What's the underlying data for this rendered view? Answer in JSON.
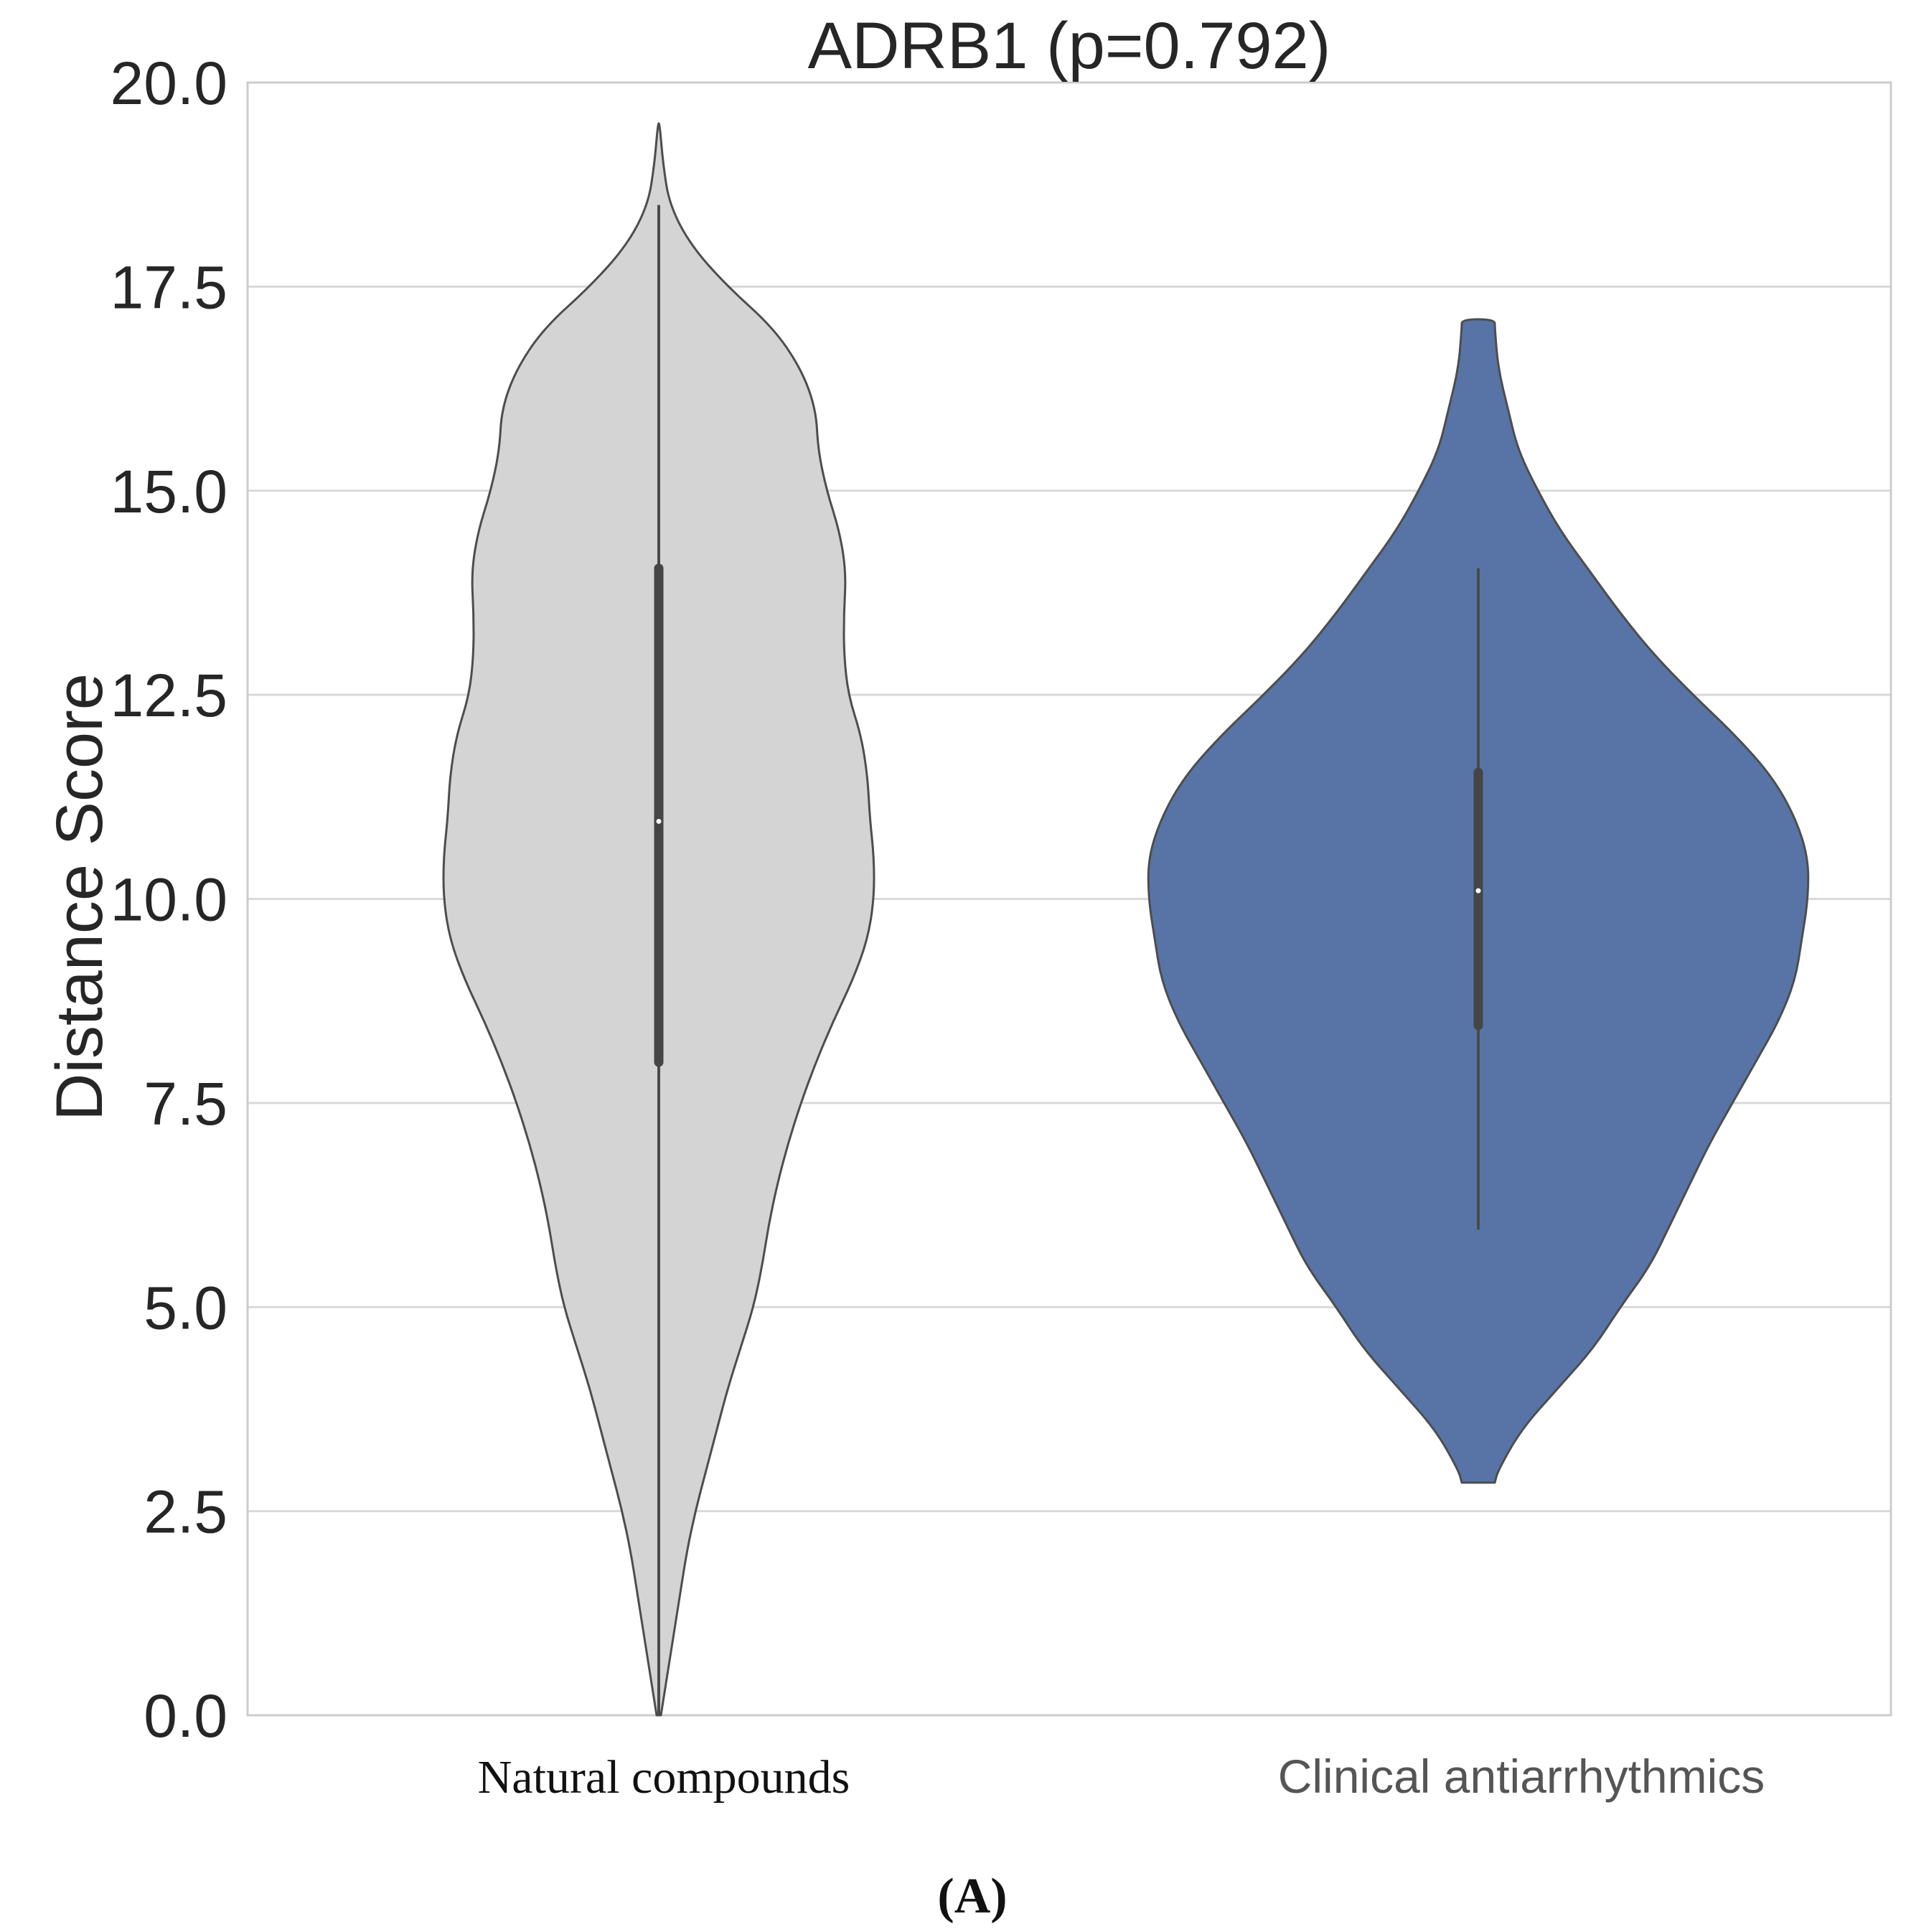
{
  "chart_data": {
    "type": "violin",
    "title": "ADRB1 (p=0.792)",
    "xlabel": "",
    "ylabel": "Distance Score",
    "ylim": [
      0,
      20
    ],
    "yticks": [
      "0.0",
      "2.5",
      "5.0",
      "7.5",
      "10.0",
      "12.5",
      "15.0",
      "17.5",
      "20.0"
    ],
    "grid": "horizontal",
    "panel_label": "(A)",
    "categories": [
      "Natural compounds",
      "Clinical antiarrhythmics"
    ],
    "series": [
      {
        "name": "Natural compounds",
        "color": "#d4d4d4",
        "min": 0.0,
        "q1": 8.0,
        "median": 10.95,
        "q3": 14.05,
        "max": 18.5,
        "whisker_top": 18.5,
        "whisker_bottom": 0.0,
        "density_profile": [
          [
            0.0,
            0.01
          ],
          [
            0.5,
            0.04
          ],
          [
            1.0,
            0.07
          ],
          [
            1.5,
            0.1
          ],
          [
            2.0,
            0.13
          ],
          [
            2.5,
            0.17
          ],
          [
            3.0,
            0.22
          ],
          [
            3.5,
            0.27
          ],
          [
            4.0,
            0.32
          ],
          [
            4.5,
            0.38
          ],
          [
            5.0,
            0.44
          ],
          [
            5.5,
            0.48
          ],
          [
            6.0,
            0.51
          ],
          [
            6.5,
            0.55
          ],
          [
            7.0,
            0.6
          ],
          [
            7.5,
            0.66
          ],
          [
            8.0,
            0.73
          ],
          [
            8.5,
            0.81
          ],
          [
            9.0,
            0.9
          ],
          [
            9.5,
            0.97
          ],
          [
            10.0,
            1.0
          ],
          [
            10.5,
            1.0
          ],
          [
            11.0,
            0.98
          ],
          [
            11.5,
            0.97
          ],
          [
            12.0,
            0.94
          ],
          [
            12.5,
            0.88
          ],
          [
            13.0,
            0.86
          ],
          [
            13.5,
            0.86
          ],
          [
            14.0,
            0.87
          ],
          [
            14.5,
            0.84
          ],
          [
            15.0,
            0.78
          ],
          [
            15.5,
            0.74
          ],
          [
            16.0,
            0.73
          ],
          [
            16.5,
            0.66
          ],
          [
            17.0,
            0.53
          ],
          [
            17.5,
            0.32
          ],
          [
            18.0,
            0.15
          ],
          [
            18.5,
            0.05
          ],
          [
            19.0,
            0.02
          ],
          [
            19.5,
            0.004
          ]
        ]
      },
      {
        "name": "Clinical antiarrhythmics",
        "color": "#5874a6",
        "min": 5.95,
        "q1": 8.45,
        "median": 10.1,
        "q3": 11.55,
        "max": 14.05,
        "whisker_top": 14.05,
        "whisker_bottom": 5.95,
        "density_profile": [
          [
            2.85,
            0.05
          ],
          [
            3.0,
            0.06
          ],
          [
            3.5,
            0.13
          ],
          [
            4.0,
            0.24
          ],
          [
            4.5,
            0.35
          ],
          [
            5.0,
            0.43
          ],
          [
            5.5,
            0.52
          ],
          [
            6.0,
            0.58
          ],
          [
            6.5,
            0.64
          ],
          [
            7.0,
            0.7
          ],
          [
            7.5,
            0.77
          ],
          [
            8.0,
            0.84
          ],
          [
            8.5,
            0.91
          ],
          [
            9.0,
            0.96
          ],
          [
            9.5,
            0.98
          ],
          [
            10.0,
            0.999
          ],
          [
            10.5,
            1.0
          ],
          [
            11.0,
            0.96
          ],
          [
            11.5,
            0.89
          ],
          [
            12.0,
            0.78
          ],
          [
            12.5,
            0.65
          ],
          [
            13.0,
            0.53
          ],
          [
            13.5,
            0.43
          ],
          [
            14.0,
            0.34
          ],
          [
            14.5,
            0.25
          ],
          [
            15.0,
            0.18
          ],
          [
            15.5,
            0.12
          ],
          [
            16.0,
            0.09
          ],
          [
            16.5,
            0.06
          ],
          [
            17.0,
            0.05
          ],
          [
            17.1,
            0.05
          ]
        ]
      }
    ]
  }
}
